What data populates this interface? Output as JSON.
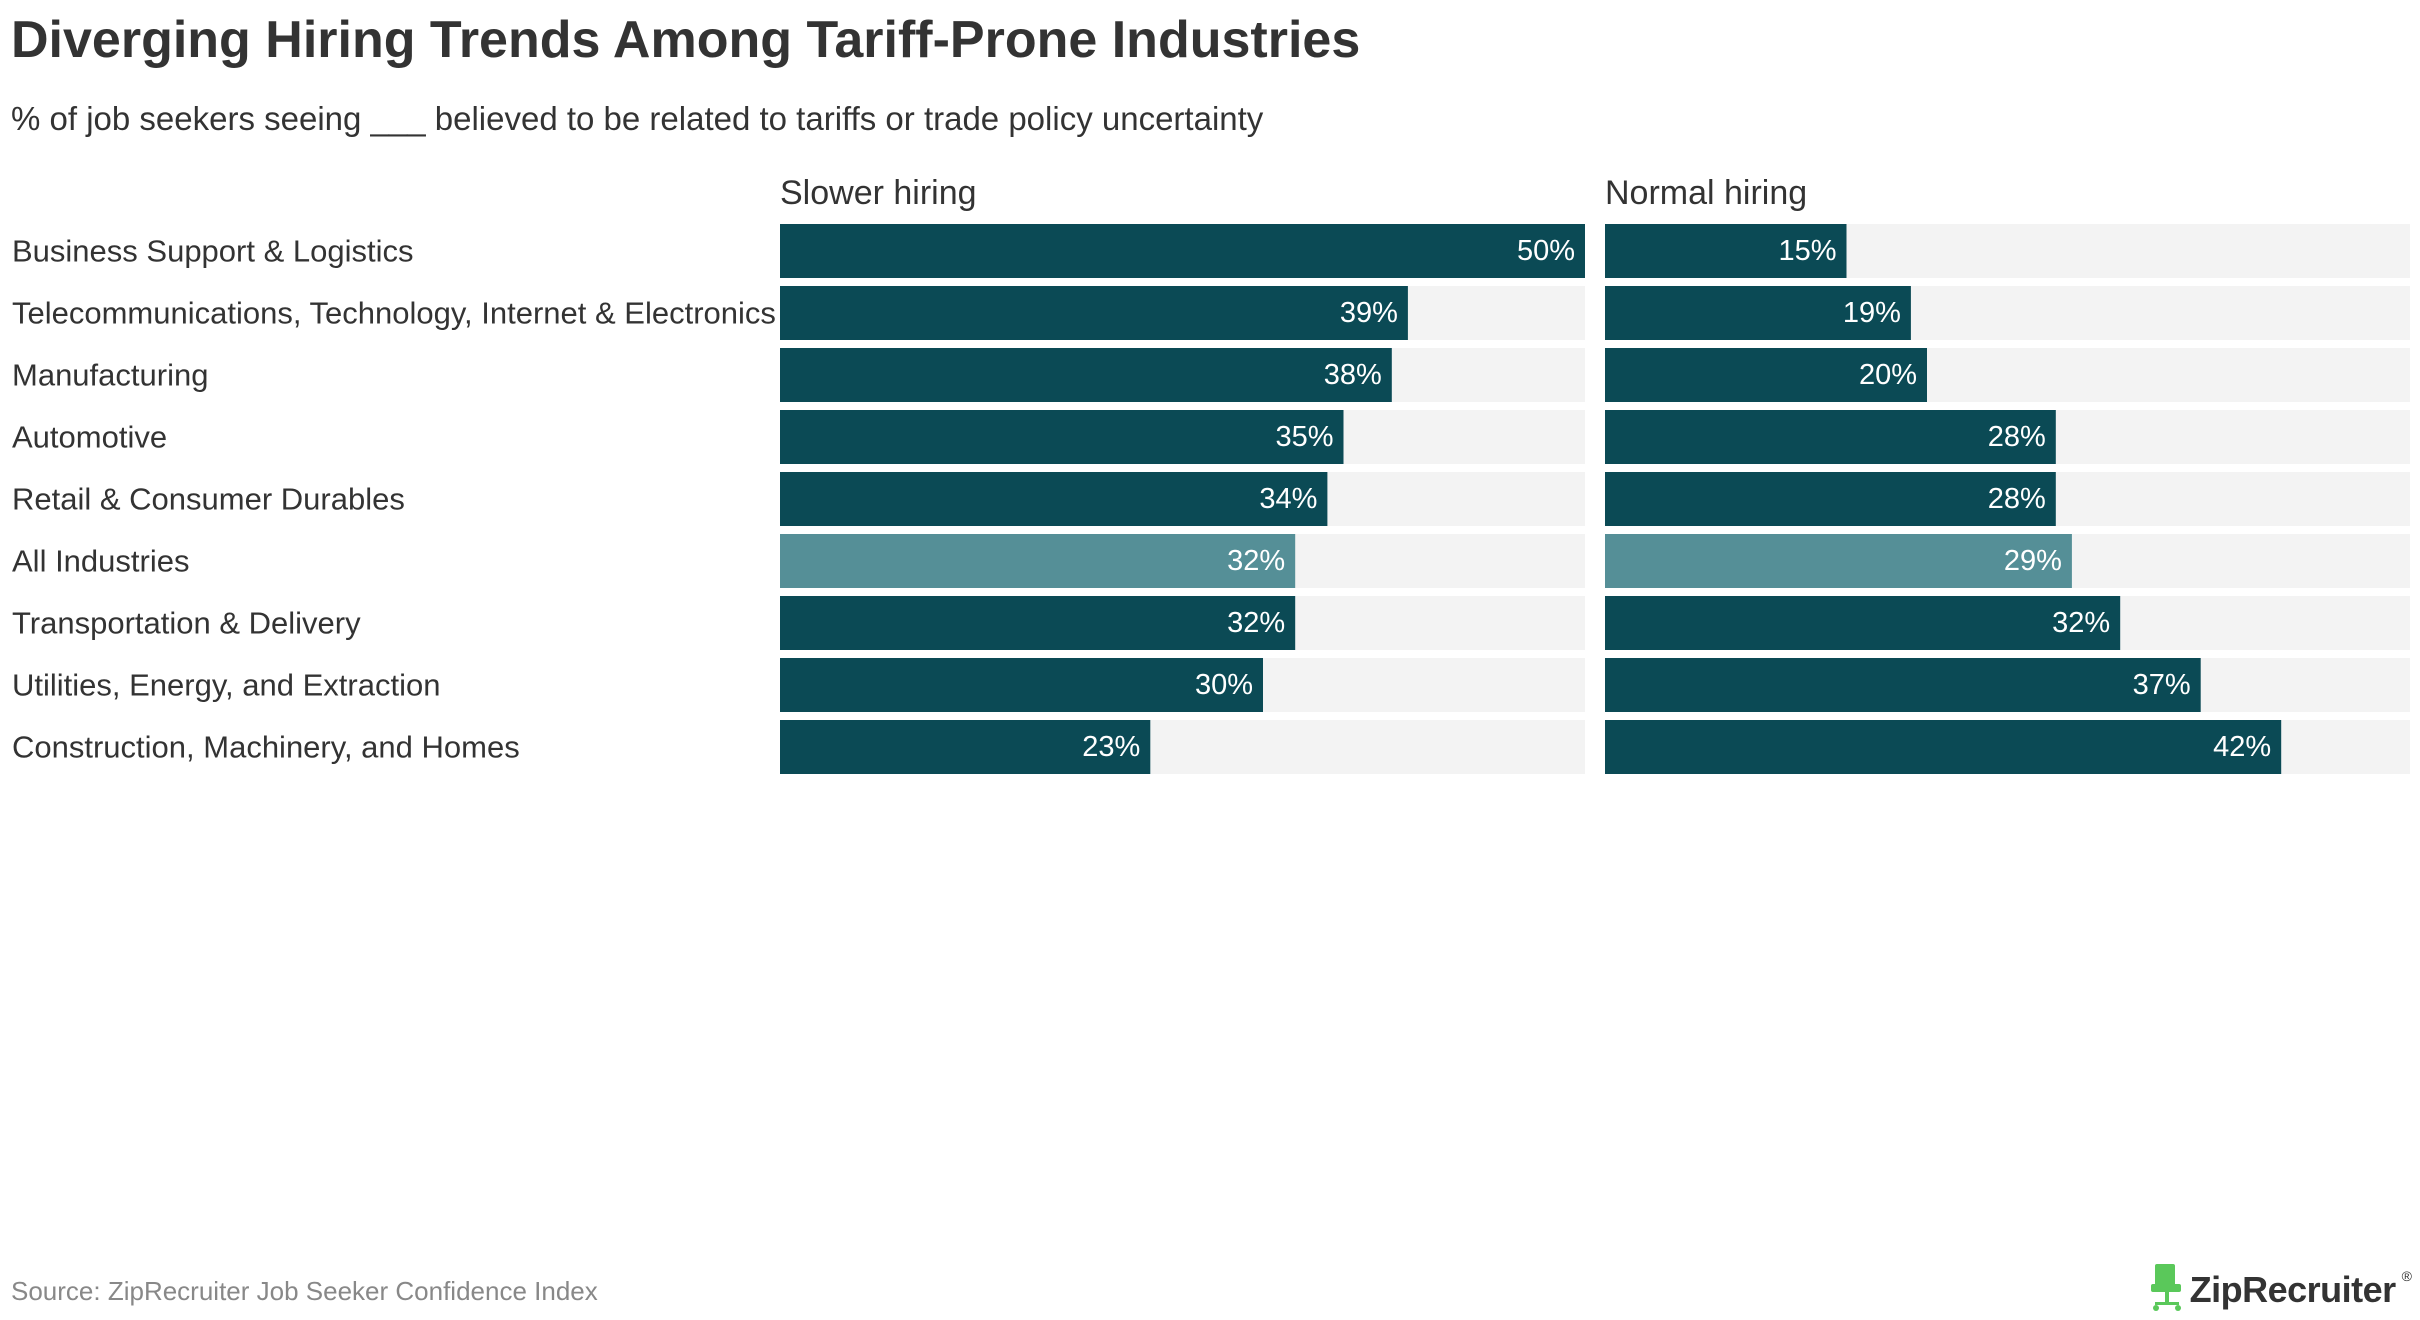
{
  "title": "Diverging Hiring Trends Among Tariff-Prone Industries",
  "subtitle": "% of job seekers seeing ___ believed to be related to tariffs or trade policy uncertainty",
  "source": "Source: ZipRecruiter Job Seeker Confidence Index",
  "brand": {
    "name": "ZipRecruiter",
    "mark": "®",
    "logo_icon": "chair-icon"
  },
  "colors": {
    "bar": "#0b4a55",
    "bar_highlight": "#558f97",
    "track": "#f3f3f3",
    "logo": "#5ac85a"
  },
  "chart_data": {
    "type": "bar",
    "orientation": "horizontal",
    "value_suffix": "%",
    "categories": [
      "Business Support & Logistics",
      "Telecommunications, Technology, Internet & Electronics",
      "Manufacturing",
      "Automotive",
      "Retail & Consumer Durables",
      "All Industries",
      "Transportation & Delivery",
      "Utilities, Energy, and Extraction",
      "Construction, Machinery, and Homes"
    ],
    "highlight_category": "All Industries",
    "xlim": [
      0,
      50
    ],
    "series": [
      {
        "name": "Slower hiring",
        "values": [
          50,
          39,
          38,
          35,
          34,
          32,
          32,
          30,
          23
        ]
      },
      {
        "name": "Normal hiring",
        "values": [
          15,
          19,
          20,
          28,
          28,
          29,
          32,
          37,
          42
        ]
      }
    ]
  }
}
